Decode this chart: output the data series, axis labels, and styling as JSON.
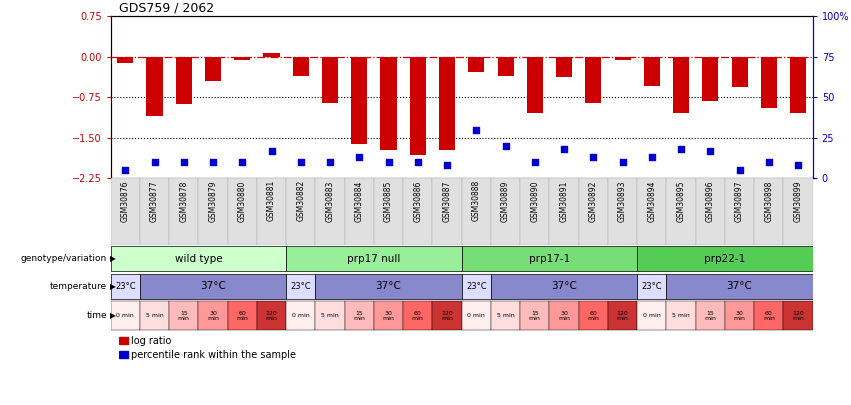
{
  "title": "GDS759 / 2062",
  "samples": [
    "GSM30876",
    "GSM30877",
    "GSM30878",
    "GSM30879",
    "GSM30880",
    "GSM30881",
    "GSM30882",
    "GSM30883",
    "GSM30884",
    "GSM30885",
    "GSM30886",
    "GSM30887",
    "GSM30888",
    "GSM30889",
    "GSM30890",
    "GSM30891",
    "GSM30892",
    "GSM30893",
    "GSM30894",
    "GSM30895",
    "GSM30896",
    "GSM30897",
    "GSM30898",
    "GSM30899"
  ],
  "log_ratio": [
    -0.12,
    -1.1,
    -0.88,
    -0.45,
    -0.07,
    0.07,
    -0.35,
    -0.85,
    -1.62,
    -1.72,
    -1.82,
    -1.73,
    -0.28,
    -0.35,
    -1.05,
    -0.38,
    -0.85,
    -0.07,
    -0.55,
    -1.05,
    -0.82,
    -0.57,
    -0.95,
    -1.05
  ],
  "percentile_pct": [
    5,
    10,
    10,
    10,
    10,
    17,
    10,
    10,
    13,
    10,
    10,
    8,
    30,
    20,
    10,
    18,
    13,
    10,
    13,
    18,
    17,
    5,
    10,
    8
  ],
  "ylim_left": [
    -2.25,
    0.75
  ],
  "ylim_right": [
    0,
    100
  ],
  "yticks_left": [
    0.75,
    0,
    -0.75,
    -1.5,
    -2.25
  ],
  "yticks_right": [
    100,
    75,
    50,
    25,
    0
  ],
  "bar_color": "#cc0000",
  "dot_color": "#0000cc",
  "genotype_groups": [
    {
      "label": "wild type",
      "start": 0,
      "end": 6,
      "color": "#ccffcc"
    },
    {
      "label": "prp17 null",
      "start": 6,
      "end": 12,
      "color": "#99ee99"
    },
    {
      "label": "prp17-1",
      "start": 12,
      "end": 18,
      "color": "#77dd77"
    },
    {
      "label": "prp22-1",
      "start": 18,
      "end": 24,
      "color": "#55cc55"
    }
  ],
  "temperature_groups": [
    {
      "label": "23°C",
      "start": 0,
      "end": 1,
      "color": "#ddddff"
    },
    {
      "label": "37°C",
      "start": 1,
      "end": 6,
      "color": "#8888cc"
    },
    {
      "label": "23°C",
      "start": 6,
      "end": 7,
      "color": "#ddddff"
    },
    {
      "label": "37°C",
      "start": 7,
      "end": 12,
      "color": "#8888cc"
    },
    {
      "label": "23°C",
      "start": 12,
      "end": 13,
      "color": "#ddddff"
    },
    {
      "label": "37°C",
      "start": 13,
      "end": 18,
      "color": "#8888cc"
    },
    {
      "label": "23°C",
      "start": 18,
      "end": 19,
      "color": "#ddddff"
    },
    {
      "label": "37°C",
      "start": 19,
      "end": 24,
      "color": "#8888cc"
    }
  ],
  "time_labels": [
    "0 min",
    "5 min",
    "15\nmin",
    "30\nmin",
    "60\nmin",
    "120\nmin",
    "0 min",
    "5 min",
    "15\nmin",
    "30\nmin",
    "60\nmin",
    "120\nmin",
    "0 min",
    "5 min",
    "15\nmin",
    "30\nmin",
    "60\nmin",
    "120\nmin",
    "0 min",
    "5 min",
    "15\nmin",
    "30\nmin",
    "60\nmin",
    "120\nmin"
  ],
  "time_colors": [
    "#ffeeee",
    "#ffdddd",
    "#ffbbbb",
    "#ff9999",
    "#ff6666",
    "#cc3333",
    "#ffeeee",
    "#ffdddd",
    "#ffbbbb",
    "#ff9999",
    "#ff6666",
    "#cc3333",
    "#ffeeee",
    "#ffdddd",
    "#ffbbbb",
    "#ff9999",
    "#ff6666",
    "#cc3333",
    "#ffeeee",
    "#ffdddd",
    "#ffbbbb",
    "#ff9999",
    "#ff6666",
    "#cc3333"
  ],
  "legend_items": [
    {
      "color": "#cc0000",
      "label": "log ratio"
    },
    {
      "color": "#0000cc",
      "label": "percentile rank within the sample"
    }
  ]
}
